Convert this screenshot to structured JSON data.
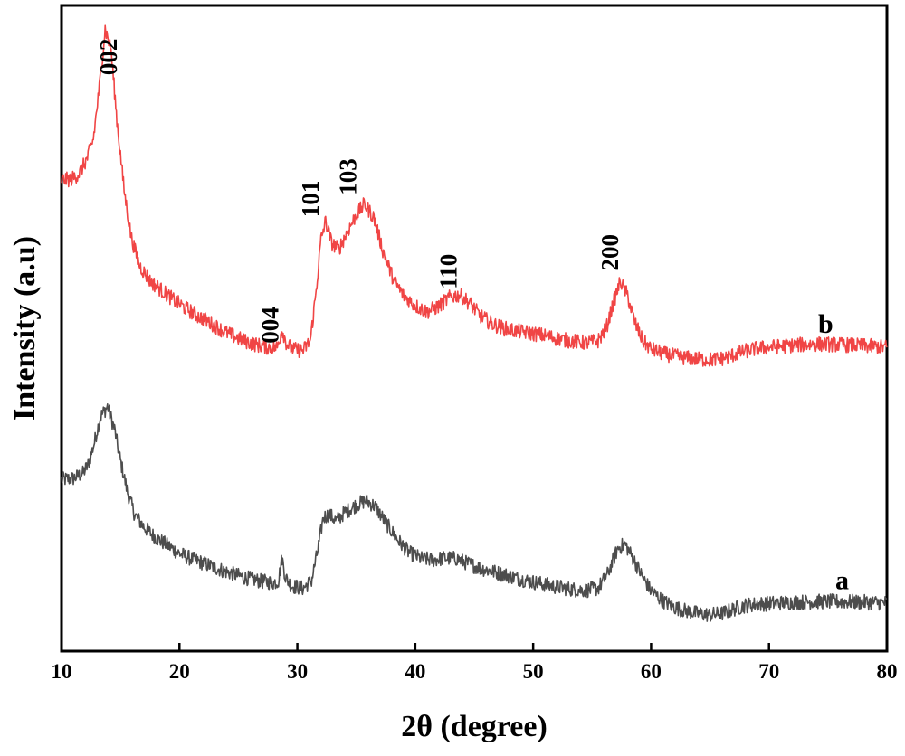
{
  "chart_data": {
    "type": "line",
    "title": "",
    "xlabel": "2θ (degree)",
    "ylabel": "Intensity (a.u)",
    "xlim": [
      10,
      80
    ],
    "ylim": [
      0,
      100
    ],
    "x_ticks": [
      "10",
      "20",
      "30",
      "40",
      "50",
      "60",
      "70",
      "80"
    ],
    "grid": false,
    "legend": "none",
    "series": [
      {
        "name": "a",
        "color": "#4d4d4d",
        "points": [
          [
            10,
            26
          ],
          [
            11,
            26.2
          ],
          [
            11.8,
            27
          ],
          [
            12.3,
            28.5
          ],
          [
            12.8,
            32
          ],
          [
            13.3,
            36
          ],
          [
            13.9,
            37.6
          ],
          [
            14.5,
            34
          ],
          [
            15,
            29
          ],
          [
            15.6,
            24
          ],
          [
            16.2,
            20.5
          ],
          [
            17,
            18.5
          ],
          [
            18,
            16.8
          ],
          [
            19,
            15.6
          ],
          [
            20,
            14.3
          ],
          [
            21,
            13.5
          ],
          [
            22,
            12.8
          ],
          [
            23,
            12.1
          ],
          [
            24,
            11.4
          ],
          [
            25,
            10.8
          ],
          [
            26,
            10.3
          ],
          [
            27,
            9.9
          ],
          [
            28,
            9.7
          ],
          [
            28.4,
            10
          ],
          [
            28.7,
            13.6
          ],
          [
            29,
            10.5
          ],
          [
            29.5,
            9.2
          ],
          [
            30.5,
            8.8
          ],
          [
            31.2,
            10
          ],
          [
            31.7,
            14.5
          ],
          [
            32.2,
            20
          ],
          [
            32.7,
            20.5
          ],
          [
            33.3,
            19.5
          ],
          [
            34,
            20.8
          ],
          [
            35,
            22
          ],
          [
            35.8,
            22.7
          ],
          [
            36.6,
            21.8
          ],
          [
            37.5,
            19.2
          ],
          [
            38.5,
            16.5
          ],
          [
            39.5,
            14.4
          ],
          [
            40.5,
            13.5
          ],
          [
            41.5,
            13.3
          ],
          [
            42.5,
            13.6
          ],
          [
            43.5,
            13.5
          ],
          [
            44.5,
            12.7
          ],
          [
            45.5,
            12
          ],
          [
            46.5,
            11.5
          ],
          [
            47.5,
            11
          ],
          [
            48.5,
            10.5
          ],
          [
            49.5,
            10
          ],
          [
            50.5,
            9.6
          ],
          [
            51.5,
            9.2
          ],
          [
            52.5,
            8.9
          ],
          [
            53.5,
            8.6
          ],
          [
            54.5,
            8.5
          ],
          [
            55.5,
            8.8
          ],
          [
            56.3,
            11
          ],
          [
            57.2,
            15.2
          ],
          [
            57.8,
            15.8
          ],
          [
            58.5,
            13.5
          ],
          [
            59.3,
            10.5
          ],
          [
            60,
            8.4
          ],
          [
            61,
            6.8
          ],
          [
            62,
            5.8
          ],
          [
            63,
            5.2
          ],
          [
            64,
            4.8
          ],
          [
            65,
            4.6
          ],
          [
            66,
            4.8
          ],
          [
            67,
            5.5
          ],
          [
            68,
            6.1
          ],
          [
            69,
            6.3
          ],
          [
            70,
            6.4
          ],
          [
            72,
            6.6
          ],
          [
            74,
            6.7
          ],
          [
            76,
            6.7
          ],
          [
            78,
            6.6
          ],
          [
            80,
            6.5
          ]
        ]
      },
      {
        "name": "b",
        "color": "#f04545",
        "points": [
          [
            10,
            73.5
          ],
          [
            10.8,
            73.6
          ],
          [
            11.5,
            74.5
          ],
          [
            12.2,
            77
          ],
          [
            12.7,
            80
          ],
          [
            13.2,
            88
          ],
          [
            13.7,
            97.5
          ],
          [
            14.2,
            94
          ],
          [
            14.7,
            83
          ],
          [
            15.3,
            72
          ],
          [
            15.9,
            64.5
          ],
          [
            16.6,
            60
          ],
          [
            17.5,
            57.5
          ],
          [
            18.5,
            56
          ],
          [
            19.5,
            54.5
          ],
          [
            20.5,
            53.2
          ],
          [
            21.5,
            52
          ],
          [
            22.5,
            51
          ],
          [
            23.5,
            49.8
          ],
          [
            24.5,
            48.8
          ],
          [
            25.5,
            48
          ],
          [
            26.5,
            47.4
          ],
          [
            27.5,
            47
          ],
          [
            28.3,
            47
          ],
          [
            28.7,
            49.8
          ],
          [
            29.1,
            47.5
          ],
          [
            29.7,
            46.6
          ],
          [
            30.5,
            46.5
          ],
          [
            31.1,
            48
          ],
          [
            31.6,
            56
          ],
          [
            32,
            64
          ],
          [
            32.4,
            67
          ],
          [
            32.9,
            63.5
          ],
          [
            33.5,
            62.5
          ],
          [
            34.3,
            65.5
          ],
          [
            35,
            68
          ],
          [
            35.7,
            69.7
          ],
          [
            36.5,
            67.5
          ],
          [
            37.3,
            62
          ],
          [
            38.2,
            57.5
          ],
          [
            39,
            55.2
          ],
          [
            40,
            53.6
          ],
          [
            41,
            52.6
          ],
          [
            42,
            53.5
          ],
          [
            43,
            55
          ],
          [
            43.8,
            55.3
          ],
          [
            44.6,
            54
          ],
          [
            45.5,
            52
          ],
          [
            46.5,
            50.7
          ],
          [
            47.5,
            50
          ],
          [
            48.5,
            49.6
          ],
          [
            49.5,
            49.3
          ],
          [
            50.5,
            49
          ],
          [
            51.5,
            48.6
          ],
          [
            52.5,
            48.2
          ],
          [
            53.5,
            47.9
          ],
          [
            54.5,
            47.7
          ],
          [
            55.5,
            48
          ],
          [
            56.2,
            50
          ],
          [
            56.8,
            54
          ],
          [
            57.4,
            57.5
          ],
          [
            58,
            55.2
          ],
          [
            58.6,
            51
          ],
          [
            59.3,
            48
          ],
          [
            60,
            46.7
          ],
          [
            61,
            46
          ],
          [
            62,
            45.6
          ],
          [
            63,
            45.3
          ],
          [
            64,
            45.1
          ],
          [
            65,
            45
          ],
          [
            66,
            45.2
          ],
          [
            67,
            45.8
          ],
          [
            68,
            46.4
          ],
          [
            69,
            46.8
          ],
          [
            70,
            47
          ],
          [
            72,
            47.3
          ],
          [
            74,
            47.5
          ],
          [
            76,
            47.4
          ],
          [
            78,
            47.2
          ],
          [
            80,
            47
          ]
        ]
      }
    ],
    "peak_labels": [
      {
        "text": "002",
        "x": 14.7,
        "y": 93
      },
      {
        "text": "004",
        "x": 28.4,
        "y": 50.5
      },
      {
        "text": "101",
        "x": 31.8,
        "y": 70.5
      },
      {
        "text": "103",
        "x": 35,
        "y": 74
      },
      {
        "text": "110",
        "x": 43.5,
        "y": 59
      },
      {
        "text": "200",
        "x": 57.2,
        "y": 62
      }
    ],
    "series_labels": [
      {
        "text": "b",
        "x": 74.8,
        "y": 49.3
      },
      {
        "text": "a",
        "x": 76.2,
        "y": 8.7
      }
    ]
  }
}
